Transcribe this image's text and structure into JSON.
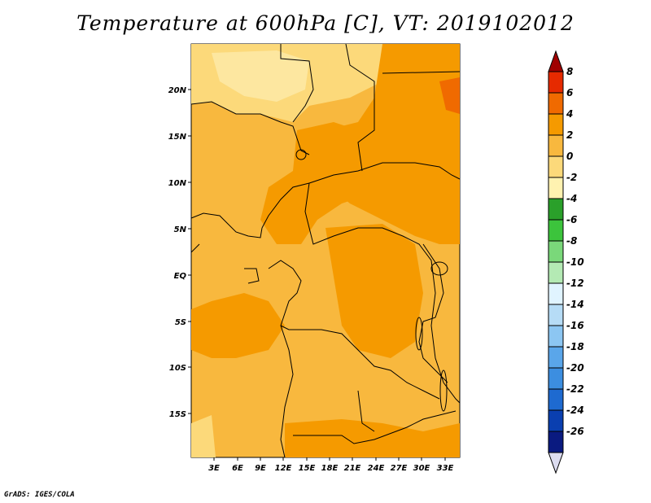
{
  "title": "Temperature at 600hPa [C], VT: 2019102012",
  "credit": "GrADS: IGES/COLA",
  "map": {
    "lat_labels": [
      "20N",
      "15N",
      "10N",
      "5N",
      "EQ",
      "5S",
      "10S",
      "15S"
    ],
    "lon_labels": [
      "3E",
      "6E",
      "9E",
      "12E",
      "15E",
      "18E",
      "21E",
      "24E",
      "27E",
      "30E",
      "33E"
    ]
  },
  "colorbar": {
    "levels": [
      "8",
      "6",
      "4",
      "2",
      "0",
      "-2",
      "-4",
      "-6",
      "-8",
      "-10",
      "-12",
      "-14",
      "-16",
      "-18",
      "-20",
      "-22",
      "-24",
      "-26"
    ],
    "colors": [
      "#a00000",
      "#e62a00",
      "#f06a00",
      "#f59a00",
      "#f8b83e",
      "#fcd97a",
      "#fff2b0",
      "#2aa02a",
      "#3cc43c",
      "#7ad87a",
      "#b4eab4",
      "#e0f4ff",
      "#b6dcf6",
      "#8cc6f2",
      "#5aa6ea",
      "#3c8ee0",
      "#1e6ad0",
      "#0a3fb0",
      "#0a1a80",
      "#dcdcf0"
    ]
  }
}
